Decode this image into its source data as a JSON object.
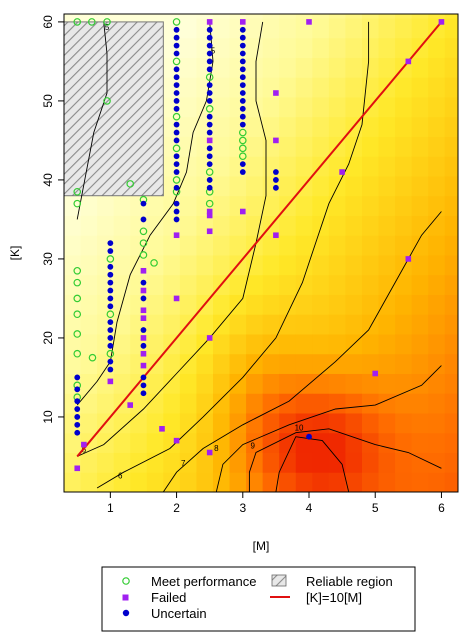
{
  "chart_data": {
    "type": "scatter",
    "title": "",
    "xlabel": "[M]",
    "ylabel": "[K]",
    "xlim": [
      0.3,
      6.25
    ],
    "ylim": [
      0.5,
      61
    ],
    "x_ticks": [
      1,
      2,
      3,
      4,
      5,
      6
    ],
    "y_ticks": [
      10,
      20,
      30,
      40,
      50,
      60
    ],
    "grid": false,
    "legend_position": "bottom",
    "background": "heatmap (light yellow to red), value increases toward bottom-right",
    "colors": {
      "meet_performance": "#33cc33",
      "failed": "#a020f0",
      "uncertain": "#0000cc",
      "reference_line": "#e01010",
      "reliable_region": "#999999"
    },
    "legend": {
      "meet_performance": "Meet performance",
      "failed": "Failed",
      "uncertain": "Uncertain",
      "reliable_region": "Reliable region",
      "reference_line": "[K]=10[M]"
    },
    "reliable_region": {
      "x": [
        0.3,
        1.8
      ],
      "y": [
        38,
        60
      ]
    },
    "reference_line": {
      "x": [
        0.5,
        6.0
      ],
      "y": [
        5,
        60
      ]
    },
    "series": [
      {
        "name": "Meet performance",
        "points": [
          [
            0.5,
            60
          ],
          [
            0.72,
            60
          ],
          [
            0.95,
            60
          ],
          [
            0.95,
            50
          ],
          [
            1.3,
            39.5
          ],
          [
            0.5,
            38.5
          ],
          [
            0.5,
            37
          ],
          [
            0.5,
            28.5
          ],
          [
            0.5,
            27
          ],
          [
            0.5,
            25
          ],
          [
            0.5,
            23
          ],
          [
            0.5,
            20.5
          ],
          [
            0.5,
            18
          ],
          [
            0.5,
            14
          ],
          [
            0.5,
            12.5
          ],
          [
            0.73,
            17.5
          ],
          [
            1.0,
            30
          ],
          [
            1.0,
            23
          ],
          [
            1.0,
            18
          ],
          [
            1.5,
            37.5
          ],
          [
            1.5,
            33.5
          ],
          [
            1.5,
            32
          ],
          [
            1.5,
            30.5
          ],
          [
            1.66,
            29.5
          ],
          [
            2.0,
            60
          ],
          [
            2.0,
            55
          ],
          [
            2.0,
            48
          ],
          [
            2.0,
            44
          ],
          [
            2.0,
            40
          ],
          [
            2.0,
            38.5
          ],
          [
            2.5,
            53
          ],
          [
            2.5,
            49
          ],
          [
            2.5,
            41
          ],
          [
            2.5,
            38.5
          ],
          [
            2.5,
            37
          ],
          [
            3.0,
            46
          ],
          [
            3.0,
            45
          ],
          [
            3.0,
            44
          ],
          [
            3.0,
            43
          ]
        ]
      },
      {
        "name": "Failed",
        "points": [
          [
            0.5,
            3.5
          ],
          [
            0.6,
            6.5
          ],
          [
            1.0,
            14.5
          ],
          [
            1.3,
            11.5
          ],
          [
            1.5,
            22.5
          ],
          [
            1.5,
            23.5
          ],
          [
            1.5,
            26
          ],
          [
            1.5,
            28.5
          ],
          [
            1.5,
            20
          ],
          [
            1.5,
            18
          ],
          [
            1.5,
            16.5
          ],
          [
            1.78,
            8.5
          ],
          [
            2.0,
            7
          ],
          [
            2.0,
            25
          ],
          [
            2.0,
            33
          ],
          [
            2.5,
            60
          ],
          [
            2.5,
            45
          ],
          [
            2.5,
            36
          ],
          [
            2.5,
            33.5
          ],
          [
            2.5,
            35.5
          ],
          [
            2.5,
            20
          ],
          [
            2.5,
            5.5
          ],
          [
            3.0,
            36
          ],
          [
            3.0,
            60
          ],
          [
            3.5,
            51
          ],
          [
            3.5,
            45
          ],
          [
            3.5,
            33
          ],
          [
            4.0,
            60
          ],
          [
            4.5,
            41
          ],
          [
            5.0,
            15.5
          ],
          [
            5.5,
            55
          ],
          [
            5.5,
            30
          ],
          [
            6.0,
            60
          ]
        ]
      },
      {
        "name": "Uncertain",
        "points": [
          [
            0.5,
            15
          ],
          [
            0.5,
            13.5
          ],
          [
            0.5,
            12
          ],
          [
            0.5,
            11
          ],
          [
            0.5,
            10
          ],
          [
            0.5,
            9
          ],
          [
            0.5,
            8
          ],
          [
            1.0,
            32
          ],
          [
            1.0,
            31
          ],
          [
            1.0,
            29
          ],
          [
            1.0,
            28
          ],
          [
            1.0,
            27
          ],
          [
            1.0,
            26
          ],
          [
            1.0,
            25
          ],
          [
            1.0,
            24
          ],
          [
            1.0,
            22
          ],
          [
            1.0,
            21
          ],
          [
            1.0,
            20
          ],
          [
            1.0,
            19
          ],
          [
            1.0,
            17
          ],
          [
            1.0,
            16
          ],
          [
            1.5,
            37
          ],
          [
            1.5,
            35
          ],
          [
            1.5,
            27
          ],
          [
            1.5,
            25
          ],
          [
            1.5,
            21
          ],
          [
            1.5,
            19
          ],
          [
            1.5,
            15
          ],
          [
            1.5,
            14
          ],
          [
            1.5,
            13
          ],
          [
            2.0,
            59
          ],
          [
            2.0,
            58
          ],
          [
            2.0,
            57
          ],
          [
            2.0,
            56
          ],
          [
            2.0,
            54
          ],
          [
            2.0,
            53
          ],
          [
            2.0,
            52
          ],
          [
            2.0,
            51
          ],
          [
            2.0,
            50
          ],
          [
            2.0,
            49
          ],
          [
            2.0,
            47
          ],
          [
            2.0,
            46
          ],
          [
            2.0,
            45
          ],
          [
            2.0,
            43
          ],
          [
            2.0,
            42
          ],
          [
            2.0,
            41
          ],
          [
            2.0,
            39
          ],
          [
            2.0,
            37
          ],
          [
            2.0,
            36
          ],
          [
            2.0,
            35
          ],
          [
            2.5,
            59
          ],
          [
            2.5,
            58
          ],
          [
            2.5,
            57
          ],
          [
            2.5,
            56
          ],
          [
            2.5,
            55
          ],
          [
            2.5,
            54
          ],
          [
            2.5,
            52
          ],
          [
            2.5,
            51
          ],
          [
            2.5,
            50
          ],
          [
            2.5,
            48
          ],
          [
            2.5,
            47
          ],
          [
            2.5,
            46
          ],
          [
            2.5,
            44
          ],
          [
            2.5,
            43
          ],
          [
            2.5,
            42
          ],
          [
            2.5,
            40
          ],
          [
            2.5,
            39
          ],
          [
            3.0,
            59
          ],
          [
            3.0,
            58
          ],
          [
            3.0,
            57
          ],
          [
            3.0,
            56
          ],
          [
            3.0,
            55
          ],
          [
            3.0,
            54
          ],
          [
            3.0,
            53
          ],
          [
            3.0,
            52
          ],
          [
            3.0,
            51
          ],
          [
            3.0,
            50
          ],
          [
            3.0,
            49
          ],
          [
            3.0,
            48
          ],
          [
            3.0,
            47
          ],
          [
            3.0,
            42
          ],
          [
            3.0,
            41
          ],
          [
            3.5,
            41
          ],
          [
            3.5,
            40
          ],
          [
            3.5,
            39
          ],
          [
            4.0,
            7.5
          ]
        ]
      }
    ],
    "contours": [
      {
        "label": "5",
        "points": [
          [
            0.5,
            11.5
          ],
          [
            0.8,
            14.5
          ],
          [
            1.0,
            17
          ],
          [
            1.1,
            22
          ],
          [
            1.3,
            28
          ],
          [
            1.6,
            33
          ],
          [
            1.95,
            37
          ],
          [
            2.15,
            41
          ],
          [
            2.25,
            46
          ],
          [
            2.45,
            50
          ],
          [
            2.55,
            55
          ],
          [
            2.5,
            60
          ]
        ],
        "label_at": [
          2.55,
          56
        ]
      },
      {
        "label": "5",
        "points": [
          [
            0.5,
            35
          ],
          [
            0.75,
            46
          ],
          [
            0.95,
            51
          ],
          [
            0.95,
            56
          ],
          [
            0.9,
            60
          ]
        ],
        "label_at": [
          0.95,
          59
        ]
      },
      {
        "label": "6",
        "points": [
          [
            0.5,
            5
          ],
          [
            0.9,
            6.5
          ],
          [
            1.5,
            11
          ],
          [
            2.0,
            15.5
          ],
          [
            2.5,
            20
          ],
          [
            3.0,
            25
          ],
          [
            3.2,
            32
          ],
          [
            3.35,
            38
          ],
          [
            3.35,
            45
          ],
          [
            3.2,
            50
          ],
          [
            3.2,
            55
          ],
          [
            3.3,
            60
          ]
        ],
        "label_at": [
          0.6,
          5.5
        ]
      },
      {
        "label": "6",
        "points": [
          [
            0.8,
            1
          ],
          [
            1.2,
            3
          ],
          [
            1.9,
            6
          ],
          [
            2.4,
            10
          ],
          [
            3.0,
            15
          ],
          [
            3.5,
            20
          ],
          [
            3.9,
            27
          ],
          [
            4.1,
            32
          ],
          [
            4.3,
            37
          ],
          [
            4.6,
            42
          ],
          [
            4.8,
            47
          ],
          [
            4.9,
            55
          ],
          [
            4.9,
            60
          ]
        ],
        "label_at": [
          1.15,
          2.2
        ]
      },
      {
        "label": "7",
        "points": [
          [
            1.8,
            0.5
          ],
          [
            2.0,
            3
          ],
          [
            2.4,
            6
          ],
          [
            3.0,
            9
          ],
          [
            3.7,
            12
          ],
          [
            4.4,
            17
          ],
          [
            4.9,
            21
          ],
          [
            5.3,
            27
          ],
          [
            5.7,
            33
          ],
          [
            6.0,
            36
          ]
        ],
        "label_at": [
          2.1,
          3.8
        ]
      },
      {
        "label": "8",
        "points": [
          [
            2.6,
            0.5
          ],
          [
            2.7,
            4
          ],
          [
            3.0,
            6.5
          ],
          [
            3.7,
            9
          ],
          [
            4.4,
            11
          ],
          [
            5.0,
            11.5
          ],
          [
            5.7,
            14
          ],
          [
            6.0,
            16.5
          ]
        ],
        "label_at": [
          2.6,
          5.7
        ]
      },
      {
        "label": "9",
        "points": [
          [
            3.1,
            0.5
          ],
          [
            3.1,
            3
          ],
          [
            3.2,
            5.5
          ],
          [
            3.8,
            8
          ],
          [
            4.3,
            8.5
          ],
          [
            5.0,
            6.5
          ],
          [
            5.5,
            5.5
          ],
          [
            6.0,
            3.5
          ]
        ],
        "label_at": [
          3.15,
          6
        ]
      },
      {
        "label": "10",
        "points": [
          [
            3.5,
            0.5
          ],
          [
            3.55,
            3
          ],
          [
            3.8,
            7.5
          ],
          [
            4.2,
            7
          ],
          [
            4.5,
            4
          ],
          [
            4.6,
            0.5
          ]
        ],
        "label_at": [
          3.85,
          8.3
        ]
      }
    ]
  }
}
